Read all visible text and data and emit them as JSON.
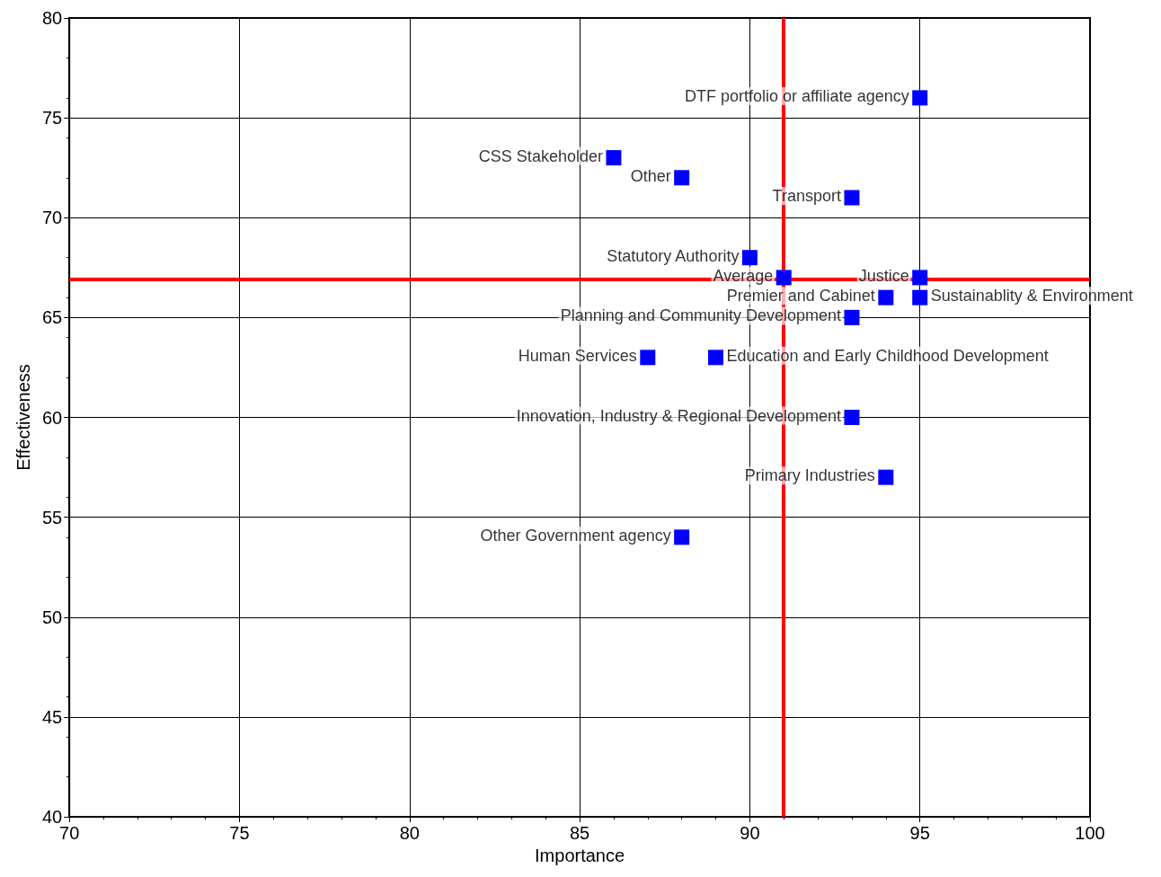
{
  "chart_data": {
    "type": "scatter",
    "xlabel": "Importance",
    "ylabel": "Effectiveness",
    "x": [
      95,
      86,
      88,
      93,
      90,
      91,
      95,
      94,
      95,
      93,
      87,
      89,
      93,
      94,
      88
    ],
    "series": [
      {
        "color": "#0000ff",
        "values": [
          76,
          73,
          72,
          71,
          68,
          67,
          67,
          66,
          66,
          65,
          63,
          63,
          60,
          57,
          54
        ]
      }
    ],
    "marker": "square",
    "grid": true,
    "xlim": [
      70,
      100
    ],
    "xticks": [
      70,
      75,
      80,
      85,
      90,
      95,
      100
    ],
    "ylim": [
      40,
      80
    ],
    "yticks": [
      40,
      45,
      50,
      55,
      60,
      65,
      70,
      75,
      80
    ],
    "ref_lines": [
      {
        "axis": "x",
        "value": 91,
        "color": "#ff0000"
      },
      {
        "axis": "y",
        "value": 66.9,
        "color": "#ff0000"
      }
    ],
    "annotations": [
      {
        "text": "DTF portfolio or affiliate agency",
        "x": 95,
        "y": 76
      },
      {
        "text": "CSS Stakeholder",
        "x": 86,
        "y": 73
      },
      {
        "text": "Other",
        "x": 88,
        "y": 72
      },
      {
        "text": "Transport",
        "x": 93,
        "y": 71
      },
      {
        "text": "Statutory Authority",
        "x": 90,
        "y": 68
      },
      {
        "text": "Average",
        "x": 91,
        "y": 67
      },
      {
        "text": "Justice",
        "x": 95,
        "y": 67
      },
      {
        "text": "Premier and Cabinet",
        "x": 94,
        "y": 66
      },
      {
        "text": "Sustainablity & Environment",
        "x": 95,
        "y": 66
      },
      {
        "text": "Planning and Community Development",
        "x": 93,
        "y": 65
      },
      {
        "text": "Human Services",
        "x": 87,
        "y": 63
      },
      {
        "text": "Education and Early Childhood Development",
        "x": 89,
        "y": 63
      },
      {
        "text": "Innovation, Industry & Regional Development",
        "x": 93,
        "y": 60
      },
      {
        "text": "Primary Industries",
        "x": 94,
        "y": 57
      },
      {
        "text": "Other Government agency",
        "x": 88,
        "y": 54
      }
    ]
  }
}
